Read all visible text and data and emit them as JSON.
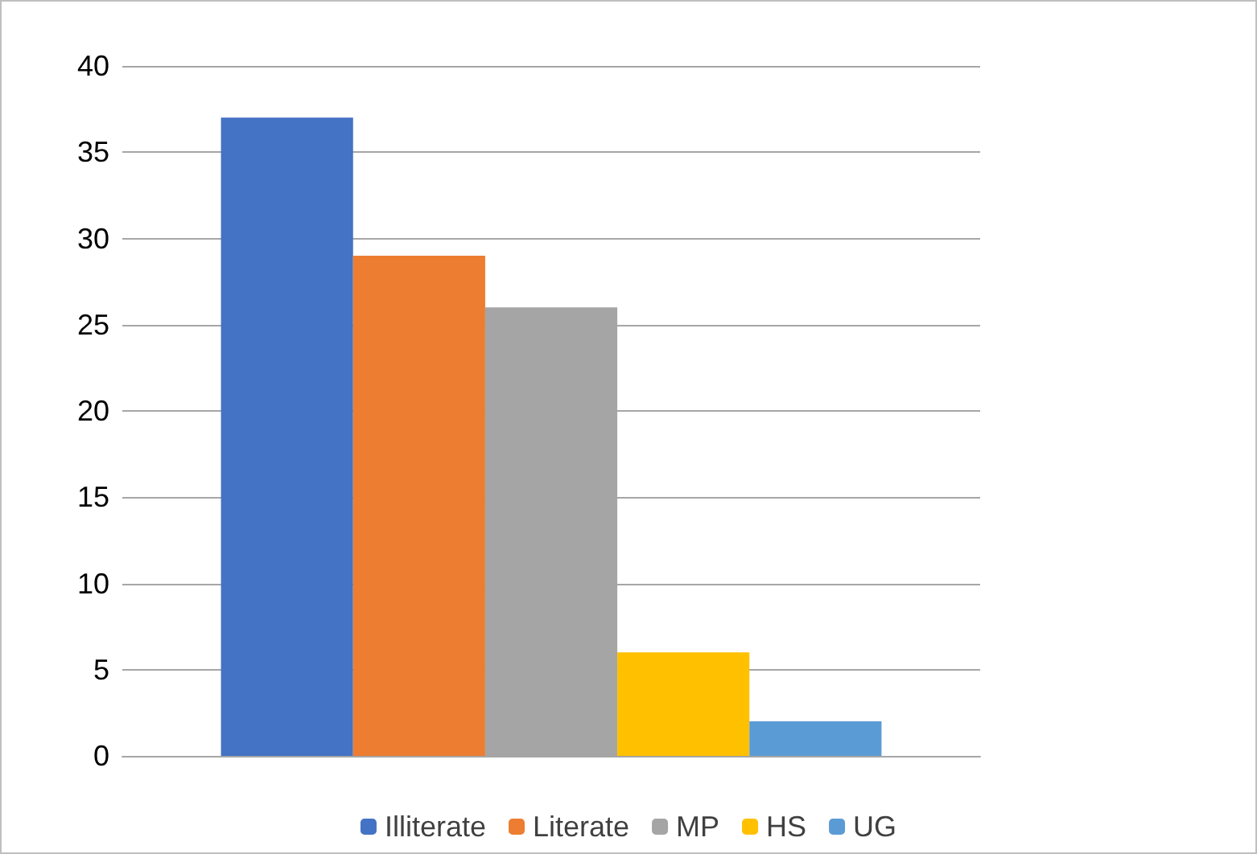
{
  "chart_data": {
    "type": "bar",
    "categories": [
      null
    ],
    "series": [
      {
        "name": "Illiterate",
        "color": "#4472c4",
        "values": [
          37
        ]
      },
      {
        "name": "Literate",
        "color": "#ed7d31",
        "values": [
          29
        ]
      },
      {
        "name": "MP",
        "color": "#a5a5a5",
        "values": [
          26
        ]
      },
      {
        "name": "HS",
        "color": "#ffc000",
        "values": [
          6
        ]
      },
      {
        "name": "UG",
        "color": "#5b9bd5",
        "values": [
          2
        ]
      }
    ],
    "ylim": [
      0,
      40
    ],
    "yticks": [
      0,
      5,
      10,
      15,
      20,
      25,
      30,
      35,
      40
    ],
    "grid": "y",
    "legend": "bottom"
  }
}
